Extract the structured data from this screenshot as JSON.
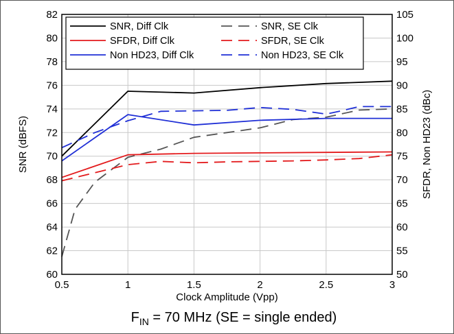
{
  "chart_data": {
    "type": "line",
    "xlabel": "Clock Amplitude (Vpp)",
    "ylabel_left": "SNR (dBFS)",
    "ylabel_right": "SFDR, Non HD23 (dBc)",
    "xlim": [
      0.5,
      3
    ],
    "ylim_left": [
      60,
      82
    ],
    "ylim_right": [
      50,
      105
    ],
    "x_ticks": [
      "0.5",
      "1",
      "1.5",
      "2",
      "2.5",
      "3"
    ],
    "y_left_ticks": [
      "60",
      "62",
      "64",
      "66",
      "68",
      "70",
      "72",
      "74",
      "76",
      "78",
      "80",
      "82"
    ],
    "y_right_ticks": [
      "50",
      "55",
      "60",
      "65",
      "70",
      "75",
      "80",
      "85",
      "90",
      "95",
      "100",
      "105"
    ],
    "grid": true,
    "legend_position": "top-left",
    "caption": {
      "prefix": "F",
      "subscript": "IN",
      "suffix": " = 70 MHz (SE = single ended)"
    },
    "series": [
      {
        "name": "SNR, Diff Clk",
        "axis": "left",
        "color": "#000000",
        "dash": "solid",
        "x": [
          0.5,
          1.0,
          1.5,
          2.0,
          2.5,
          3.0
        ],
        "y": [
          70.0,
          75.5,
          75.35,
          75.8,
          76.15,
          76.35
        ]
      },
      {
        "name": "SNR, SE Clk",
        "axis": "left",
        "color": "#555555",
        "dash": "dashed",
        "x": [
          0.5,
          0.6,
          0.75,
          1.0,
          1.25,
          1.5,
          1.75,
          2.0,
          2.25,
          2.5,
          2.75,
          3.0
        ],
        "y": [
          61.5,
          65.5,
          67.8,
          69.9,
          70.6,
          71.6,
          72.0,
          72.4,
          73.1,
          73.3,
          73.9,
          74.0
        ]
      },
      {
        "name": "SFDR, Diff Clk",
        "axis": "right",
        "color": "#e31a1c",
        "dash": "solid",
        "x": [
          0.5,
          1.0,
          1.5,
          2.0,
          2.5,
          3.0
        ],
        "y": [
          70.5,
          75.3,
          75.6,
          75.7,
          75.8,
          75.9
        ]
      },
      {
        "name": "SFDR, SE Clk",
        "axis": "right",
        "color": "#e31a1c",
        "dash": "dashed",
        "x": [
          0.5,
          0.75,
          1.0,
          1.25,
          1.5,
          1.75,
          2.0,
          2.25,
          2.5,
          2.75,
          3.0
        ],
        "y": [
          69.8,
          71.5,
          73.2,
          73.9,
          73.6,
          73.8,
          73.9,
          74.0,
          74.2,
          74.5,
          75.3
        ]
      },
      {
        "name": "Non HD23, Diff Clk",
        "axis": "right",
        "color": "#1f2fd6",
        "dash": "solid",
        "x": [
          0.5,
          1.0,
          1.5,
          2.0,
          2.5,
          3.0
        ],
        "y": [
          74.0,
          83.8,
          81.6,
          82.6,
          83.0,
          83.0
        ]
      },
      {
        "name": "Non HD23, SE Clk",
        "axis": "right",
        "color": "#1f2fd6",
        "dash": "dashed",
        "x": [
          0.5,
          0.75,
          1.0,
          1.25,
          1.5,
          1.75,
          2.0,
          2.25,
          2.5,
          2.6,
          2.75,
          3.0
        ],
        "y": [
          76.8,
          80.0,
          82.5,
          84.5,
          84.6,
          84.7,
          85.3,
          84.9,
          83.9,
          84.5,
          85.5,
          85.5
        ]
      }
    ]
  }
}
